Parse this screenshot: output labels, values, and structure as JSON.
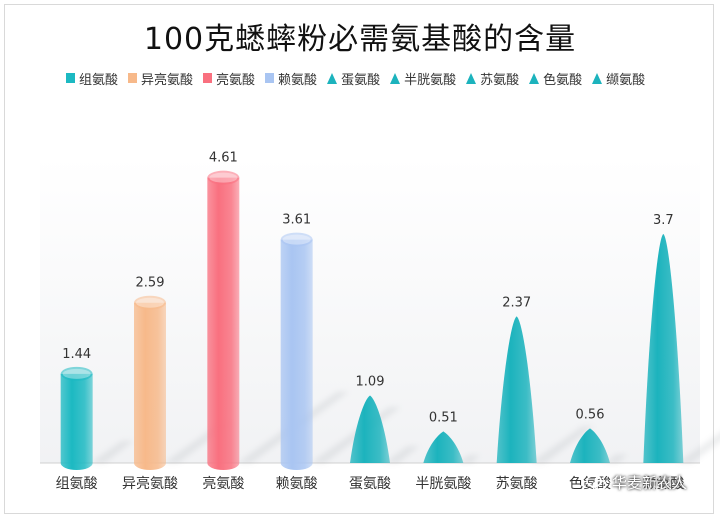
{
  "chart_data": {
    "type": "bar",
    "title": "100克蟋蟀粉必需氨基酸的含量",
    "categories": [
      "组氨酸",
      "异亮氨酸",
      "亮氨酸",
      "赖氨酸",
      "蛋氨酸",
      "半胱氨酸",
      "苏氨酸",
      "色氨酸",
      "缬氨酸"
    ],
    "values": [
      1.44,
      2.59,
      4.61,
      3.61,
      1.09,
      0.51,
      2.37,
      0.56,
      3.7
    ],
    "data_labels": [
      "1.44",
      "2.59",
      "4.61",
      "3.61",
      "1.09",
      "0.51",
      "2.37",
      "0.56",
      "3.7"
    ],
    "shapes": [
      "cylinder",
      "cylinder",
      "cylinder",
      "cylinder",
      "cone",
      "cone",
      "cone",
      "cone",
      "cone"
    ],
    "colors": [
      "#1cb9c2",
      "#f7b98a",
      "#f9707f",
      "#a9c5f2",
      "#1cb3bd",
      "#1cb3bd",
      "#1cb3bd",
      "#1cb3bd",
      "#1cb3bd"
    ],
    "ylim": [
      0,
      5
    ],
    "grid": false,
    "legend_position": "top",
    "xlabel": "",
    "ylabel": ""
  },
  "watermark": "华麦新农人"
}
